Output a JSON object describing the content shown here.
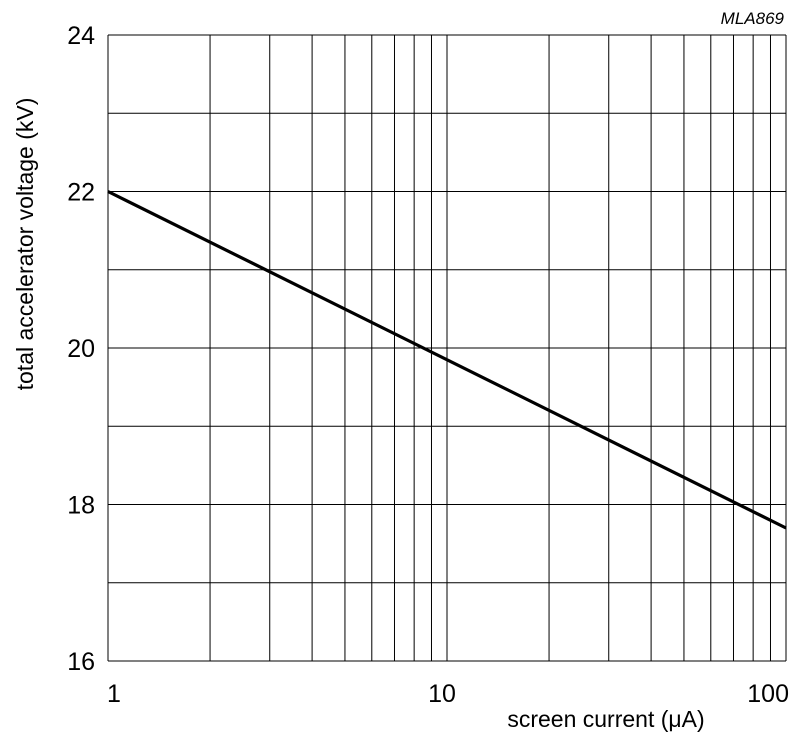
{
  "chart_data": {
    "type": "line",
    "code": "MLA869",
    "title": "",
    "xlabel": "screen current (μA)",
    "ylabel": "total accelerator voltage (kV)",
    "x_scale": "log",
    "xlim": [
      1,
      100
    ],
    "ylim": [
      16,
      24
    ],
    "x_ticks": [
      1,
      10,
      100
    ],
    "x_tick_labels": [
      "1",
      "10",
      "100"
    ],
    "y_ticks": [
      16,
      18,
      20,
      22,
      24
    ],
    "y_tick_labels": [
      "16",
      "18",
      "20",
      "22",
      "24"
    ],
    "grid": true,
    "series": [
      {
        "values": [
          {
            "x": 1,
            "y": 22.0
          },
          {
            "x": 100,
            "y": 17.7
          }
        ]
      }
    ],
    "colors": {
      "line": "#000000",
      "grid": "#000000",
      "background": "#ffffff"
    }
  }
}
